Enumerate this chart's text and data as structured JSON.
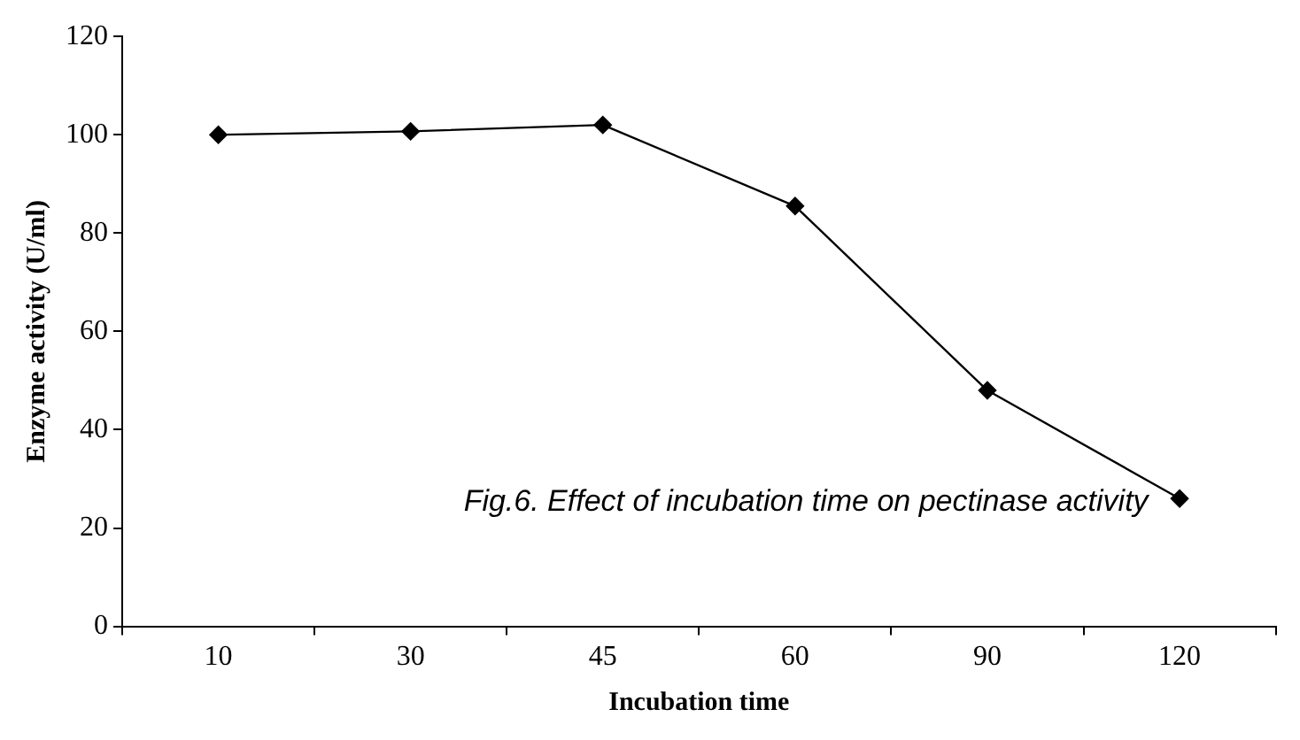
{
  "chart_data": {
    "type": "line",
    "xlabel": "Incubation time",
    "ylabel": "Enzyme activity (U/ml)",
    "categories": [
      "10",
      "30",
      "45",
      "60",
      "90",
      "120"
    ],
    "series": [
      {
        "color": "#000000",
        "values": [
          100,
          100.7,
          102,
          85.5,
          48,
          26
        ]
      }
    ],
    "ylim": [
      0,
      120
    ],
    "yticks": [
      0,
      20,
      40,
      60,
      80,
      100,
      120
    ],
    "grid": false,
    "legend": false,
    "marker": "diamond",
    "line_style": "solid",
    "annotations": [
      "Fig.6. Effect of incubation time on pectinase activity"
    ]
  }
}
